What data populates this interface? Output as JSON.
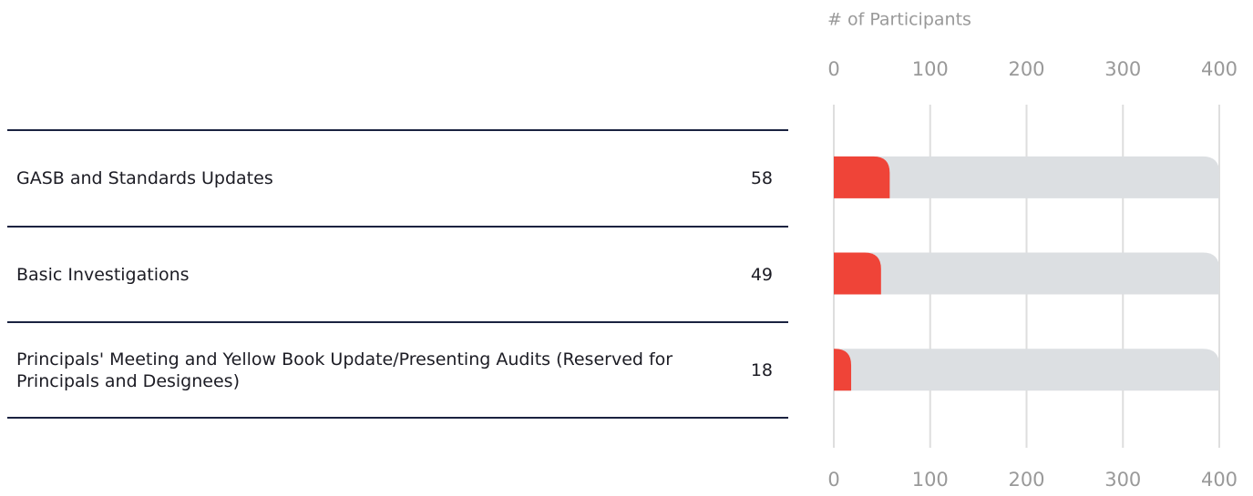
{
  "chart_data": {
    "type": "bar",
    "orientation": "horizontal",
    "x_label": "# of Participants",
    "categories": [
      "GASB and Standards Updates",
      "Basic Investigations",
      "Principals' Meeting and Yellow Book Update/Presenting Audits (Reserved for Principals and Designees)"
    ],
    "values": [
      58,
      49,
      18
    ],
    "color": "#ef4438",
    "track_color": "#dcdfe2",
    "xlim": [
      0,
      400
    ],
    "xticks": [
      0,
      100,
      200,
      300,
      400
    ],
    "grid": true
  }
}
